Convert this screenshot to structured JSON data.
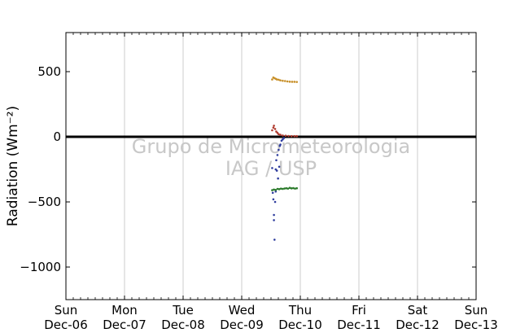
{
  "chart_data": {
    "type": "scatter",
    "ylabel": "Radiation (Wm⁻²)",
    "xlabel": "",
    "title": "",
    "ylim": [
      -1250,
      800
    ],
    "yticks": [
      500,
      0,
      -500,
      -1000
    ],
    "ytick_labels": [
      "500",
      "0",
      "−500",
      "−1000"
    ],
    "xlim": [
      0,
      7
    ],
    "xticks": [
      {
        "x": 0,
        "day": "Sun",
        "date": "Dec-06"
      },
      {
        "x": 1,
        "day": "Mon",
        "date": "Dec-07"
      },
      {
        "x": 2,
        "day": "Tue",
        "date": "Dec-08"
      },
      {
        "x": 3,
        "day": "Wed",
        "date": "Dec-09"
      },
      {
        "x": 4,
        "day": "Thu",
        "date": "Dec-10"
      },
      {
        "x": 5,
        "day": "Fri",
        "date": "Dec-11"
      },
      {
        "x": 6,
        "day": "Sat",
        "date": "Dec-12"
      },
      {
        "x": 7,
        "day": "Sun",
        "date": "Dec-13"
      }
    ],
    "grid": "vertical",
    "zero_line": true,
    "watermark": [
      "Grupo de Micrometeorologia",
      "IAG / USP"
    ],
    "series": [
      {
        "color": "#c8902a",
        "x": [
          3.52,
          3.54,
          3.56,
          3.58,
          3.6,
          3.63,
          3.66,
          3.7,
          3.74,
          3.78,
          3.82,
          3.86,
          3.9,
          3.94
        ],
        "y": [
          440,
          455,
          450,
          445,
          440,
          438,
          433,
          430,
          428,
          425,
          423,
          422,
          422,
          421
        ]
      },
      {
        "color": "#b03a2e",
        "x": [
          3.52,
          3.54,
          3.55,
          3.57,
          3.59,
          3.61,
          3.63,
          3.66,
          3.7,
          3.75,
          3.8,
          3.85,
          3.9,
          3.94
        ],
        "y": [
          50,
          70,
          85,
          60,
          40,
          30,
          20,
          15,
          10,
          8,
          6,
          5,
          5,
          5
        ]
      },
      {
        "color": "#2f3d9e",
        "x": [
          3.52,
          3.53,
          3.54,
          3.55,
          3.55,
          3.56,
          3.57,
          3.58,
          3.58,
          3.59,
          3.6,
          3.61,
          3.62,
          3.63,
          3.64,
          3.65,
          3.66,
          3.68,
          3.7,
          3.72
        ],
        "y": [
          -240,
          -430,
          -480,
          -600,
          -640,
          -790,
          -500,
          -420,
          -250,
          -180,
          -260,
          -140,
          -320,
          -100,
          -230,
          -70,
          -60,
          -30,
          -20,
          -10
        ]
      },
      {
        "color": "#2a7a2a",
        "x": [
          3.52,
          3.55,
          3.58,
          3.61,
          3.64,
          3.67,
          3.7,
          3.73,
          3.76,
          3.79,
          3.82,
          3.85,
          3.88,
          3.91,
          3.94
        ],
        "y": [
          -410,
          -405,
          -408,
          -400,
          -402,
          -398,
          -400,
          -397,
          -395,
          -398,
          -392,
          -396,
          -394,
          -398,
          -395
        ]
      }
    ]
  }
}
